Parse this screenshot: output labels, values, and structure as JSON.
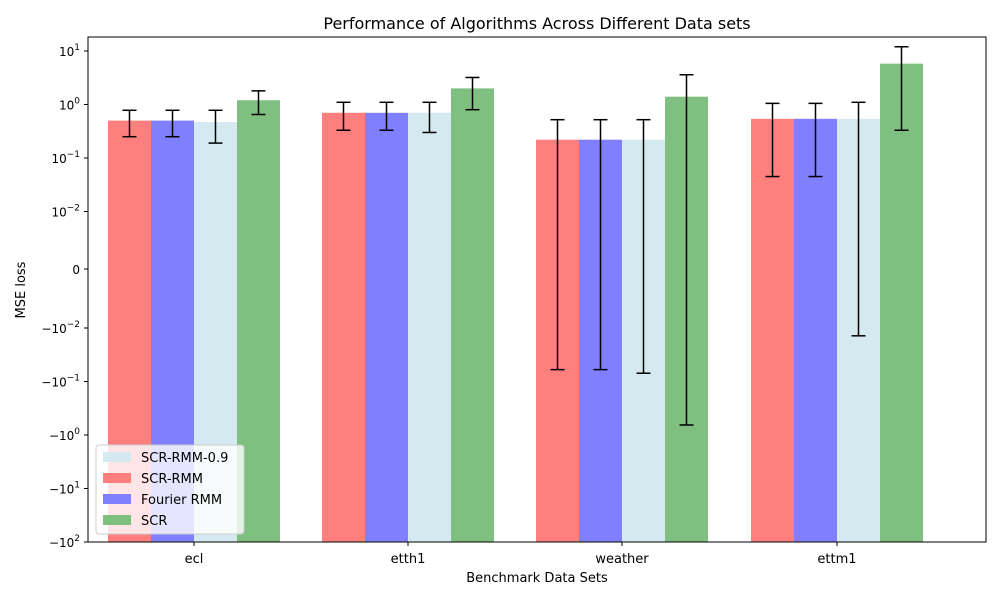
{
  "chart_data": {
    "type": "bar",
    "title": "Performance of Algorithms Across Different Data sets",
    "xlabel": "Benchmark Data Sets",
    "ylabel": "MSE loss",
    "yscale": "symlog",
    "ylim_label": [
      "−10²",
      "10¹"
    ],
    "yticks": [
      {
        "label": "10¹",
        "exp": "1",
        "sign": "",
        "pos": 1
      },
      {
        "label": "10⁰",
        "exp": "0",
        "sign": "",
        "pos": 0
      },
      {
        "label": "10⁻¹",
        "exp": "−1",
        "sign": "",
        "pos": -1
      },
      {
        "label": "10⁻²",
        "exp": "−2",
        "sign": "",
        "pos": -2
      },
      {
        "label": "0",
        "exp": "",
        "sign": "",
        "pos": "zero"
      },
      {
        "label": "−10⁻²",
        "exp": "−2",
        "sign": "−",
        "pos": -2
      },
      {
        "label": "−10⁻¹",
        "exp": "−1",
        "sign": "−",
        "pos": -1
      },
      {
        "label": "−10⁰",
        "exp": "0",
        "sign": "−",
        "pos": 0
      },
      {
        "label": "−10¹",
        "exp": "1",
        "sign": "−",
        "pos": 1
      },
      {
        "label": "−10²",
        "exp": "2",
        "sign": "−",
        "pos": 2
      }
    ],
    "categories": [
      "ecl",
      "etth1",
      "weather",
      "ettm1"
    ],
    "series": [
      {
        "name": "SCR-RMM",
        "color": "#ff7f7f",
        "values": [
          0.5,
          0.7,
          0.22,
          0.54
        ],
        "err_low": [
          0.25,
          0.33,
          -0.06,
          0.045
        ],
        "err_high": [
          0.78,
          1.1,
          0.52,
          1.05
        ]
      },
      {
        "name": "Fourier RMM",
        "color": "#7f7fff",
        "values": [
          0.5,
          0.7,
          0.22,
          0.54
        ],
        "err_low": [
          0.25,
          0.33,
          -0.06,
          0.045
        ],
        "err_high": [
          0.78,
          1.1,
          0.52,
          1.05
        ]
      },
      {
        "name": "SCR-RMM-0.9",
        "color": "#d4eaf0",
        "values": [
          0.47,
          0.7,
          0.22,
          0.54
        ],
        "err_low": [
          0.19,
          0.3,
          -0.07,
          -0.014
        ],
        "err_high": [
          0.78,
          1.1,
          0.52,
          1.1
        ]
      },
      {
        "name": "SCR",
        "color": "#7fbf7f",
        "values": [
          1.2,
          2.0,
          1.4,
          5.8
        ],
        "err_low": [
          0.65,
          0.8,
          -0.65,
          0.33
        ],
        "err_high": [
          1.8,
          3.2,
          3.6,
          12.0
        ]
      }
    ],
    "legend": {
      "placement": "lower-left",
      "entries": [
        {
          "name": "SCR-RMM-0.9",
          "color": "#d4eaf0"
        },
        {
          "name": "SCR-RMM",
          "color": "#ff7f7f"
        },
        {
          "name": "Fourier RMM",
          "color": "#7f7fff"
        },
        {
          "name": "SCR",
          "color": "#7fbf7f"
        }
      ]
    },
    "grid": false
  }
}
